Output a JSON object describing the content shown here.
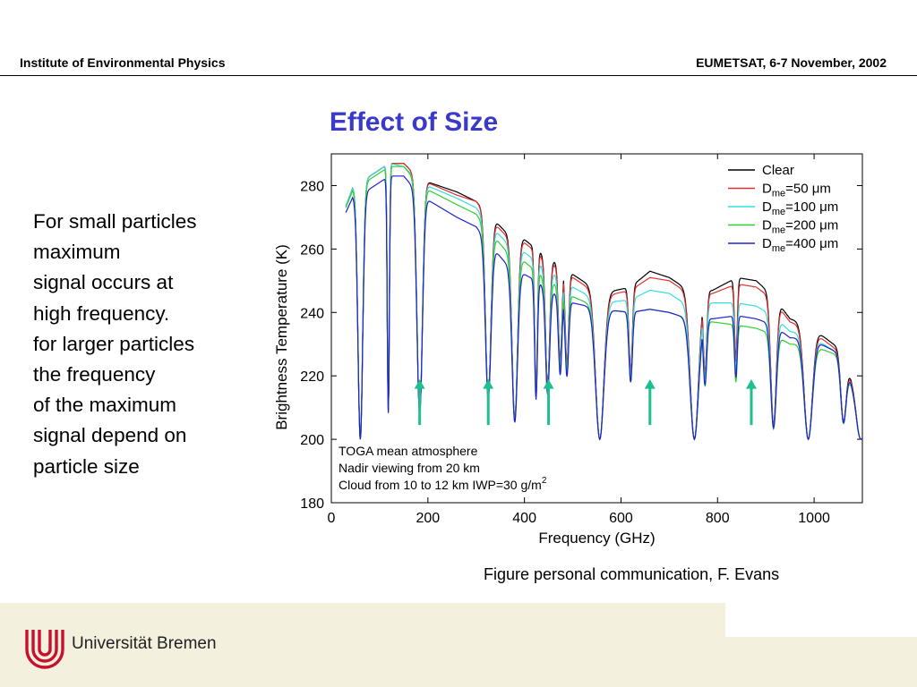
{
  "header": {
    "left": "Institute of Environmental Physics",
    "right": "EUMETSAT, 6-7 November, 2002"
  },
  "title": "Effect of Size",
  "body_lines": [
    "For small particles",
    "maximum",
    "signal occurs at",
    "high frequency.",
    "for larger particles",
    "the frequency",
    "of the maximum",
    "signal depend on",
    "particle size"
  ],
  "caption": "Figure personal communication,  F. Evans",
  "footer": {
    "university": "Universität Bremen"
  },
  "chart_data": {
    "type": "line",
    "xlabel": "Frequency (GHz)",
    "ylabel": "Brightness Temperature (K)",
    "xlim": [
      0,
      1100
    ],
    "ylim": [
      180,
      290
    ],
    "xticks": [
      0,
      200,
      400,
      600,
      800,
      1000
    ],
    "yticks": [
      180,
      200,
      220,
      240,
      260,
      280
    ],
    "grid": false,
    "legend_position": "top-right",
    "annotation_lines": [
      "TOGA mean atmosphere",
      "Nadir viewing from 20 km",
      "Cloud from 10 to 12 km    IWP=30 g/m"
    ],
    "annotation_superscript": "2",
    "arrows_at_frequency": [
      183,
      325,
      450,
      660,
      870
    ],
    "arrow_color": "#1fbf8f",
    "absorption_lines": [
      {
        "f": 60,
        "depth": 1.0,
        "width": 7
      },
      {
        "f": 118,
        "depth": 0.9,
        "width": 3
      },
      {
        "f": 183,
        "depth": 0.9,
        "width": 8
      },
      {
        "f": 325,
        "depth": 0.8,
        "width": 8
      },
      {
        "f": 380,
        "depth": 0.9,
        "width": 8
      },
      {
        "f": 424,
        "depth": 0.75,
        "width": 4
      },
      {
        "f": 448,
        "depth": 0.7,
        "width": 6
      },
      {
        "f": 474,
        "depth": 0.55,
        "width": 5
      },
      {
        "f": 488,
        "depth": 0.55,
        "width": 5
      },
      {
        "f": 556,
        "depth": 1.0,
        "width": 12
      },
      {
        "f": 620,
        "depth": 0.55,
        "width": 5
      },
      {
        "f": 752,
        "depth": 1.0,
        "width": 12
      },
      {
        "f": 774,
        "depth": 0.55,
        "width": 5
      },
      {
        "f": 838,
        "depth": 0.5,
        "width": 4
      },
      {
        "f": 916,
        "depth": 0.9,
        "width": 8
      },
      {
        "f": 988,
        "depth": 1.0,
        "width": 12
      },
      {
        "f": 1061,
        "depth": 0.8,
        "width": 8
      },
      {
        "f": 1097,
        "depth": 1.0,
        "width": 10
      }
    ],
    "series": [
      {
        "name": "Clear",
        "sub": "",
        "color": "#000000",
        "envelope": [
          [
            0,
            275
          ],
          [
            60,
            281
          ],
          [
            120,
            287
          ],
          [
            150,
            287
          ],
          [
            183,
            282
          ],
          [
            260,
            278
          ],
          [
            300,
            275
          ],
          [
            325,
            271
          ],
          [
            370,
            264
          ],
          [
            400,
            263
          ],
          [
            424,
            260
          ],
          [
            448,
            257
          ],
          [
            474,
            255
          ],
          [
            500,
            252
          ],
          [
            560,
            246
          ],
          [
            620,
            248
          ],
          [
            660,
            253
          ],
          [
            700,
            251
          ],
          [
            720,
            249
          ],
          [
            752,
            246
          ],
          [
            790,
            247
          ],
          [
            840,
            251
          ],
          [
            880,
            250
          ],
          [
            916,
            245
          ],
          [
            950,
            238
          ],
          [
            988,
            236
          ],
          [
            1040,
            230
          ],
          [
            1061,
            228
          ],
          [
            1100,
            205
          ]
        ]
      },
      {
        "name": "D",
        "sub": "me",
        "rest": "=50 μm",
        "color": "#e03030",
        "envelope": [
          [
            0,
            275
          ],
          [
            60,
            281
          ],
          [
            120,
            287
          ],
          [
            150,
            287
          ],
          [
            183,
            282
          ],
          [
            260,
            277
          ],
          [
            300,
            275
          ],
          [
            325,
            270
          ],
          [
            370,
            263
          ],
          [
            400,
            262
          ],
          [
            424,
            259
          ],
          [
            448,
            256
          ],
          [
            474,
            254
          ],
          [
            500,
            251
          ],
          [
            560,
            245
          ],
          [
            620,
            247
          ],
          [
            660,
            251
          ],
          [
            700,
            250
          ],
          [
            720,
            248
          ],
          [
            752,
            245
          ],
          [
            790,
            246
          ],
          [
            840,
            249
          ],
          [
            880,
            248
          ],
          [
            916,
            244
          ],
          [
            950,
            237
          ],
          [
            988,
            235
          ],
          [
            1040,
            229
          ],
          [
            1061,
            227
          ],
          [
            1100,
            205
          ]
        ]
      },
      {
        "name": "D",
        "sub": "me",
        "rest": "=100 μm",
        "color": "#30e0e0",
        "envelope": [
          [
            0,
            275
          ],
          [
            60,
            281
          ],
          [
            120,
            287
          ],
          [
            150,
            286
          ],
          [
            183,
            281
          ],
          [
            260,
            276
          ],
          [
            300,
            273
          ],
          [
            325,
            268
          ],
          [
            370,
            261
          ],
          [
            400,
            259
          ],
          [
            424,
            256
          ],
          [
            448,
            253
          ],
          [
            474,
            251
          ],
          [
            500,
            248
          ],
          [
            560,
            243
          ],
          [
            620,
            244
          ],
          [
            660,
            247
          ],
          [
            700,
            246
          ],
          [
            720,
            244
          ],
          [
            752,
            242
          ],
          [
            790,
            243
          ],
          [
            840,
            243
          ],
          [
            880,
            242
          ],
          [
            916,
            239
          ],
          [
            950,
            234
          ],
          [
            988,
            233
          ],
          [
            1040,
            228
          ],
          [
            1061,
            226
          ],
          [
            1100,
            205
          ]
        ]
      },
      {
        "name": "D",
        "sub": "me",
        "rest": "=200 μm",
        "color": "#30d030",
        "envelope": [
          [
            0,
            275
          ],
          [
            60,
            280
          ],
          [
            120,
            286
          ],
          [
            150,
            286
          ],
          [
            183,
            280
          ],
          [
            260,
            274
          ],
          [
            300,
            271
          ],
          [
            325,
            266
          ],
          [
            370,
            258
          ],
          [
            400,
            256
          ],
          [
            424,
            253
          ],
          [
            448,
            250
          ],
          [
            474,
            248
          ],
          [
            500,
            245
          ],
          [
            560,
            241
          ],
          [
            620,
            240
          ],
          [
            660,
            241
          ],
          [
            700,
            240
          ],
          [
            720,
            239
          ],
          [
            752,
            237
          ],
          [
            790,
            237
          ],
          [
            840,
            236
          ],
          [
            880,
            235
          ],
          [
            916,
            233
          ],
          [
            950,
            230
          ],
          [
            988,
            230
          ],
          [
            1040,
            227
          ],
          [
            1061,
            225
          ],
          [
            1100,
            205
          ]
        ]
      },
      {
        "name": "D",
        "sub": "me",
        "rest": "=400 μm",
        "color": "#2020d0",
        "envelope": [
          [
            0,
            275
          ],
          [
            60,
            277
          ],
          [
            120,
            283
          ],
          [
            150,
            283
          ],
          [
            183,
            277
          ],
          [
            260,
            270
          ],
          [
            300,
            267
          ],
          [
            325,
            262
          ],
          [
            370,
            254
          ],
          [
            400,
            252
          ],
          [
            424,
            250
          ],
          [
            448,
            247
          ],
          [
            474,
            245
          ],
          [
            500,
            243
          ],
          [
            560,
            241
          ],
          [
            620,
            240
          ],
          [
            660,
            241
          ],
          [
            700,
            240
          ],
          [
            720,
            239
          ],
          [
            752,
            238
          ],
          [
            790,
            238
          ],
          [
            840,
            239
          ],
          [
            880,
            238
          ],
          [
            916,
            236
          ],
          [
            950,
            232
          ],
          [
            988,
            232
          ],
          [
            1040,
            228
          ],
          [
            1061,
            226
          ],
          [
            1100,
            205
          ]
        ]
      }
    ]
  }
}
